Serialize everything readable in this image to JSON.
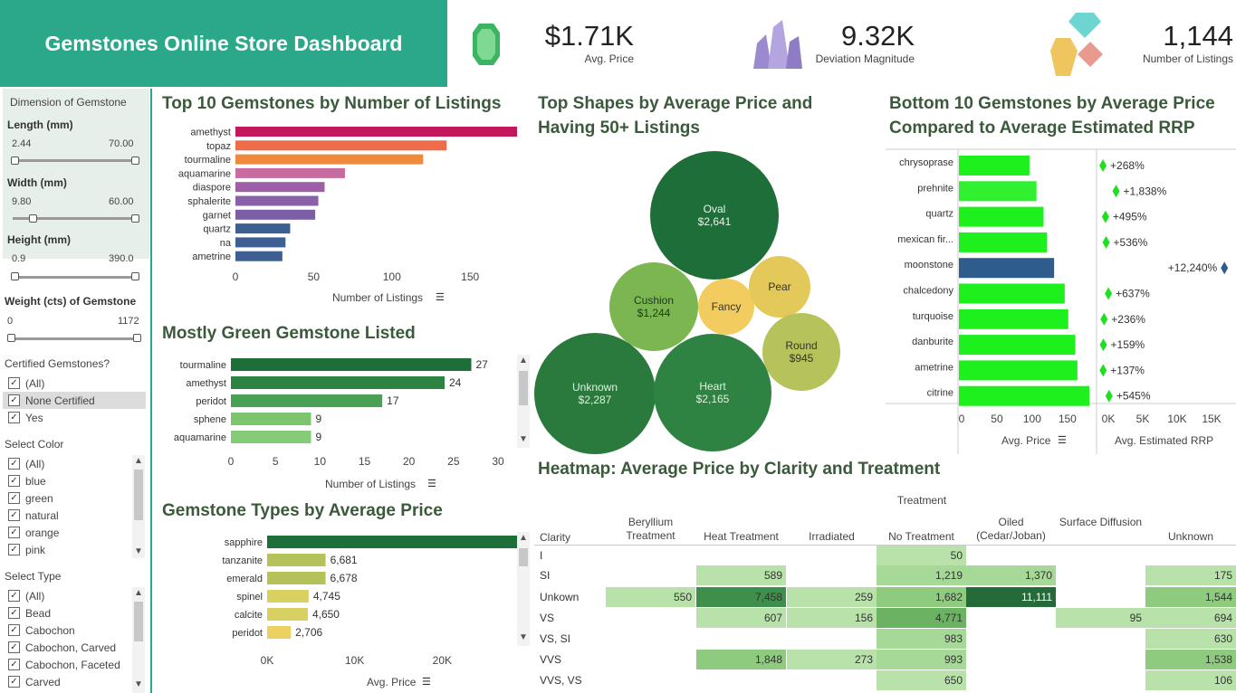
{
  "title": "Gemstones Online Store Dashboard",
  "kpis": [
    {
      "value": "$1.71K",
      "label": "Avg. Price",
      "icon": "green-emerald-icon"
    },
    {
      "value": "9.32K",
      "label": "Deviation Magnitude",
      "icon": "purple-crystal-icon"
    },
    {
      "value": "1,144",
      "label": "Number of Listings",
      "icon": "gem-cluster-icon"
    }
  ],
  "filters": {
    "dimension_title": "Dimension of Gemstone",
    "length": {
      "label": "Length (mm)",
      "min": "2.44",
      "max": "70.00"
    },
    "width": {
      "label": "Width (mm)",
      "min": "9.80",
      "max": "60.00"
    },
    "height": {
      "label": "Height (mm)",
      "min": "0.9",
      "max": "390.0"
    },
    "weight": {
      "label": "Weight (cts) of Gemstone",
      "min": "0",
      "max": "1172"
    },
    "certified": {
      "label": "Certified Gemstones?",
      "options": [
        "(All)",
        "None Certified",
        "Yes"
      ]
    },
    "color": {
      "label": "Select Color",
      "options": [
        "(All)",
        "blue",
        "green",
        "natural",
        "orange",
        "pink"
      ]
    },
    "type": {
      "label": "Select Type",
      "options": [
        "(All)",
        "Bead",
        "Cabochon",
        "Cabochon, Carved",
        "Cabochon, Faceted",
        "Carved"
      ]
    }
  },
  "top10": {
    "title": "Top 10 Gemstones by Number of Listings",
    "xlabel": "Number of Listings",
    "ticks": [
      "0",
      "50",
      "100",
      "150"
    ],
    "colors": {
      "amethyst": "#c2185b",
      "topaz": "#ef6c4a",
      "tourmaline": "#ef8a3c",
      "aquamarine": "#c76ba0",
      "diaspore": "#9e5fa8",
      "sphalerite": "#8a60a8",
      "garnet": "#7b5ea6",
      "quartz": "#3e5f92",
      "na": "#3e5f92",
      "ametrine": "#3e5f92"
    }
  },
  "green": {
    "title": "Mostly Green Gemstone Listed",
    "xlabel": "Number of Listings",
    "ticks": [
      "0",
      "5",
      "10",
      "15",
      "20",
      "25",
      "30"
    ]
  },
  "types": {
    "title": "Gemstone Types by Average Price",
    "xlabel": "Avg. Price",
    "ticks": [
      "0K",
      "10K",
      "20K",
      "30K"
    ]
  },
  "shapes": {
    "title_line1": "Top Shapes by Average Price and",
    "title_line2": "Having 50+ Listings",
    "bubbles": [
      {
        "name": "Oval",
        "value": "$2,641"
      },
      {
        "name": "Cushion",
        "value": "$1,244"
      },
      {
        "name": "Fancy",
        "value": ""
      },
      {
        "name": "Pear",
        "value": ""
      },
      {
        "name": "Round",
        "value": "$945"
      },
      {
        "name": "Unknown",
        "value": "$2,287"
      },
      {
        "name": "Heart",
        "value": "$2,165"
      }
    ]
  },
  "bottom10": {
    "title_line1": "Bottom 10 Gemstones by Average Price",
    "title_line2": "Compared to Average Estimated RRP",
    "xlabel1": "Avg. Price",
    "xlabel2": "Avg. Estimated RRP",
    "ticks1": [
      "0",
      "50",
      "100",
      "150"
    ],
    "ticks2": [
      "0K",
      "5K",
      "10K",
      "15K"
    ]
  },
  "heatmap": {
    "title": "Heatmap: Average Price by Clarity and Treatment",
    "treatment_label": "Treatment",
    "clarity_label": "Clarity",
    "columns": [
      "Beryllium Treatment",
      "Heat Treatment",
      "Irradiated",
      "No Treatment",
      "Oiled (Cedar/Joban)",
      "Surface Diffusion",
      "Unknown"
    ],
    "rows": [
      {
        "clarity": "I",
        "cells": [
          "",
          "",
          "",
          "50",
          "",
          "",
          ""
        ]
      },
      {
        "clarity": "SI",
        "cells": [
          "",
          "589",
          "",
          "1,219",
          "1,370",
          "",
          "175"
        ]
      },
      {
        "clarity": "Unkown",
        "cells": [
          "550",
          "7,458",
          "259",
          "1,682",
          "11,111",
          "",
          "1,544"
        ]
      },
      {
        "clarity": "VS",
        "cells": [
          "",
          "607",
          "156",
          "4,771",
          "",
          "95",
          "694"
        ]
      },
      {
        "clarity": "VS, SI",
        "cells": [
          "",
          "",
          "",
          "983",
          "",
          "",
          "630"
        ]
      },
      {
        "clarity": "VVS",
        "cells": [
          "",
          "1,848",
          "273",
          "993",
          "",
          "",
          "1,538"
        ]
      },
      {
        "clarity": "VVS, VS",
        "cells": [
          "",
          "",
          "",
          "650",
          "",
          "",
          "106"
        ]
      }
    ]
  },
  "chart_data": [
    {
      "type": "bar",
      "title": "Top 10 Gemstones by Number of Listings",
      "xlabel": "Number of Listings",
      "categories": [
        "amethyst",
        "topaz",
        "tourmaline",
        "aquamarine",
        "diaspore",
        "sphalerite",
        "garnet",
        "quartz",
        "na",
        "ametrine"
      ],
      "values": [
        180,
        135,
        120,
        70,
        57,
        53,
        51,
        35,
        32,
        30
      ],
      "xlim": [
        0,
        180
      ]
    },
    {
      "type": "bar",
      "title": "Mostly Green Gemstone Listed",
      "xlabel": "Number of Listings",
      "categories": [
        "tourmaline",
        "amethyst",
        "peridot",
        "sphene",
        "aquamarine"
      ],
      "values": [
        27,
        24,
        17,
        9,
        9
      ],
      "xlim": [
        0,
        30
      ]
    },
    {
      "type": "bar",
      "title": "Gemstone Types by Average Price",
      "xlabel": "Avg. Price",
      "categories": [
        "sapphire",
        "tanzanite",
        "emerald",
        "spinel",
        "calcite",
        "peridot"
      ],
      "values": [
        30104,
        6681,
        6678,
        4745,
        4650,
        2706
      ],
      "xlim": [
        0,
        30000
      ]
    },
    {
      "type": "bar",
      "title": "Bottom 10 Gemstones by Average Price Compared to Average Estimated RRP",
      "categories": [
        "chrysoprase",
        "prehnite",
        "quartz",
        "mexican fir...",
        "moonstone",
        "chalcedony",
        "turquoise",
        "danburite",
        "ametrine",
        "citrine"
      ],
      "values": [
        100,
        110,
        120,
        125,
        135,
        150,
        155,
        165,
        168,
        185
      ],
      "rrp_pct": [
        "+268%",
        "+1,838%",
        "+495%",
        "+536%",
        "+12,240%",
        "+637%",
        "+236%",
        "+159%",
        "+137%",
        "+545%"
      ],
      "rrp_values": [
        370,
        2130,
        715,
        795,
        16660,
        1105,
        520,
        428,
        398,
        1193
      ],
      "xlim": [
        0,
        190
      ]
    }
  ]
}
